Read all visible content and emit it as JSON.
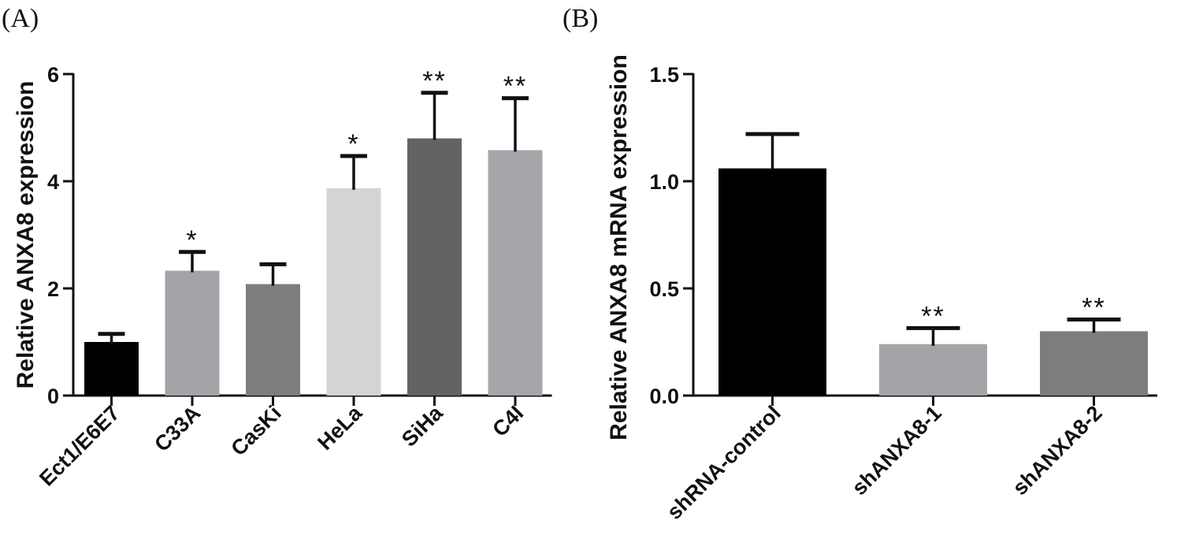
{
  "chart_data": [
    {
      "panel": "(A)",
      "type": "bar",
      "title": "",
      "xlabel": "",
      "ylabel": "Relative ANXA8 expression",
      "ylim": [
        0,
        6
      ],
      "yticks": [
        "0",
        "2",
        "4",
        "6"
      ],
      "categories": [
        "Ect1/E6E7",
        "C33A",
        "CasKi",
        "HeLa",
        "SiHa",
        "C4I"
      ],
      "values": [
        1.0,
        2.33,
        2.08,
        3.87,
        4.8,
        4.58
      ],
      "errors": [
        0.15,
        0.35,
        0.37,
        0.6,
        0.85,
        0.97
      ],
      "significance": [
        "",
        "*",
        "",
        "*",
        "**",
        "**"
      ],
      "colors": [
        "#000000",
        "#a3a3a8",
        "#7d7d7d",
        "#d4d4d4",
        "#636363",
        "#a6a6aa"
      ]
    },
    {
      "panel": "(B)",
      "type": "bar",
      "title": "",
      "xlabel": "",
      "ylabel": "Relative ANXA8 mRNA expression",
      "ylim": [
        0,
        1.5
      ],
      "yticks": [
        "0.0",
        "0.5",
        "1.0",
        "1.5"
      ],
      "categories": [
        "shRNA-control",
        "shANXA8-1",
        "shANXA8-2"
      ],
      "values": [
        1.06,
        0.24,
        0.3
      ],
      "errors": [
        0.16,
        0.075,
        0.055
      ],
      "significance": [
        "",
        "**",
        "**"
      ],
      "colors": [
        "#000000",
        "#a3a3a8",
        "#7d7d7d"
      ]
    }
  ]
}
